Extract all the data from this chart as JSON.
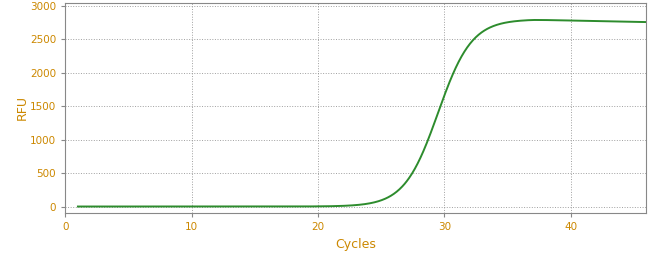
{
  "xlabel": "Cycles",
  "ylabel": "RFU",
  "xlim": [
    0,
    46
  ],
  "ylim": [
    -100,
    3050
  ],
  "xticks": [
    0,
    10,
    20,
    30,
    40
  ],
  "yticks": [
    0,
    500,
    1000,
    1500,
    2000,
    2500,
    3000
  ],
  "line_color": "#2d8c2d",
  "line_width": 1.4,
  "grid_color": "#888888",
  "background_color": "#ffffff",
  "tick_label_color": "#cc8800",
  "axis_label_color": "#cc8800",
  "spine_color": "#888888",
  "sigmoid_L": 2800,
  "sigmoid_k": 0.75,
  "sigmoid_x0": 29.5,
  "plateau_drop": 80,
  "plateau_drop_rate": 0.08,
  "plateau_start": 37,
  "x_start": 1,
  "x_end": 46,
  "figsize": [
    6.53,
    2.6
  ],
  "dpi": 100
}
